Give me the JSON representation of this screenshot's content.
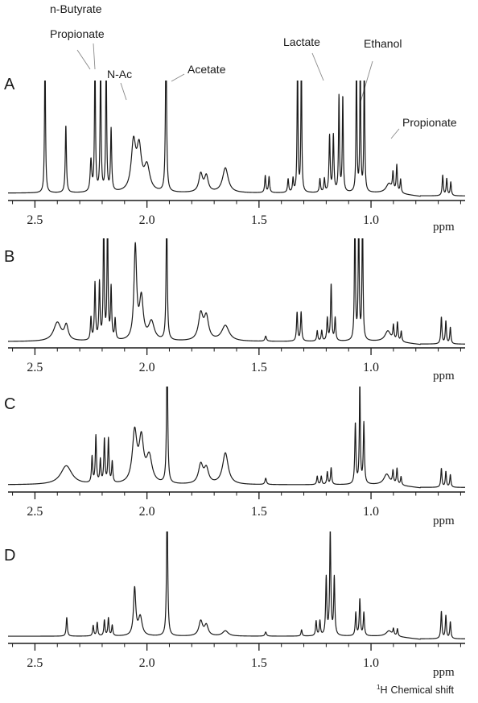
{
  "chart_data": {
    "type": "line",
    "x_unit": "ppm",
    "x_reversed": true,
    "xlim": [
      2.62,
      0.58
    ],
    "x_ticks": [
      2.5,
      2.0,
      1.5,
      1.0
    ],
    "x_tick_labels": [
      "2.5",
      "2.0",
      "1.5",
      "1.0"
    ],
    "xlabel_per_panel": "ppm",
    "xlabel_bottom": "Chemical shift",
    "xlabel_bottom_superscript": "1",
    "xlabel_bottom_nucleus": "H",
    "line_color": "#1a1a1a",
    "peak_labels": [
      {
        "text": "n-Butyrate",
        "ppm": 2.225
      },
      {
        "text": "Propionate",
        "ppm": 2.195
      },
      {
        "text": "N-Ac",
        "ppm": 2.045
      },
      {
        "text": "Acetate",
        "ppm": 1.915
      },
      {
        "text": "Lactate",
        "ppm": 1.33
      },
      {
        "text": "Ethanol",
        "ppm": 1.05
      },
      {
        "text": "Propionate",
        "ppm": 1.05
      }
    ],
    "panels": [
      {
        "label": "A",
        "baseline": 0.03,
        "peaks": [
          {
            "ppm": 2.455,
            "h": 1.3,
            "w": 0.0025
          },
          {
            "ppm": 2.362,
            "h": 0.6,
            "w": 0.003
          },
          {
            "ppm": 2.25,
            "h": 0.28,
            "w": 0.004
          },
          {
            "ppm": 2.232,
            "h": 1.25,
            "w": 0.0025
          },
          {
            "ppm": 2.207,
            "h": 1.25,
            "w": 0.0025
          },
          {
            "ppm": 2.182,
            "h": 1.25,
            "w": 0.0025
          },
          {
            "ppm": 2.16,
            "h": 0.55,
            "w": 0.003
          },
          {
            "ppm": 2.06,
            "h": 0.42,
            "w": 0.012
          },
          {
            "ppm": 2.035,
            "h": 0.36,
            "w": 0.012
          },
          {
            "ppm": 2.0,
            "h": 0.22,
            "w": 0.015
          },
          {
            "ppm": 1.915,
            "h": 1.4,
            "w": 0.003
          },
          {
            "ppm": 1.76,
            "h": 0.16,
            "w": 0.01
          },
          {
            "ppm": 1.735,
            "h": 0.14,
            "w": 0.01
          },
          {
            "ppm": 1.65,
            "h": 0.22,
            "w": 0.015
          },
          {
            "ppm": 1.472,
            "h": 0.15,
            "w": 0.003
          },
          {
            "ppm": 1.455,
            "h": 0.14,
            "w": 0.003
          },
          {
            "ppm": 1.37,
            "h": 0.12,
            "w": 0.003
          },
          {
            "ppm": 1.348,
            "h": 0.12,
            "w": 0.003
          },
          {
            "ppm": 1.328,
            "h": 1.3,
            "w": 0.0022
          },
          {
            "ppm": 1.311,
            "h": 1.3,
            "w": 0.0022
          },
          {
            "ppm": 1.228,
            "h": 0.12,
            "w": 0.003
          },
          {
            "ppm": 1.208,
            "h": 0.12,
            "w": 0.003
          },
          {
            "ppm": 1.185,
            "h": 0.5,
            "w": 0.003
          },
          {
            "ppm": 1.168,
            "h": 0.5,
            "w": 0.003
          },
          {
            "ppm": 1.143,
            "h": 0.85,
            "w": 0.0025
          },
          {
            "ppm": 1.126,
            "h": 0.85,
            "w": 0.0025
          },
          {
            "ppm": 1.065,
            "h": 1.3,
            "w": 0.0022
          },
          {
            "ppm": 1.048,
            "h": 1.3,
            "w": 0.0022
          },
          {
            "ppm": 1.03,
            "h": 1.3,
            "w": 0.0022
          },
          {
            "ppm": 0.92,
            "h": 0.08,
            "w": 0.015
          },
          {
            "ppm": 0.902,
            "h": 0.16,
            "w": 0.003
          },
          {
            "ppm": 0.885,
            "h": 0.24,
            "w": 0.003
          },
          {
            "ppm": 0.868,
            "h": 0.12,
            "w": 0.003
          },
          {
            "ppm": 0.68,
            "h": 0.18,
            "w": 0.003
          },
          {
            "ppm": 0.662,
            "h": 0.15,
            "w": 0.003
          },
          {
            "ppm": 0.644,
            "h": 0.12,
            "w": 0.003
          }
        ]
      },
      {
        "label": "B",
        "baseline": 0.03,
        "peaks": [
          {
            "ppm": 2.4,
            "h": 0.18,
            "w": 0.02
          },
          {
            "ppm": 2.36,
            "h": 0.14,
            "w": 0.01
          },
          {
            "ppm": 2.25,
            "h": 0.22,
            "w": 0.003
          },
          {
            "ppm": 2.232,
            "h": 0.55,
            "w": 0.003
          },
          {
            "ppm": 2.212,
            "h": 0.55,
            "w": 0.003
          },
          {
            "ppm": 2.193,
            "h": 1.3,
            "w": 0.0025
          },
          {
            "ppm": 2.176,
            "h": 1.3,
            "w": 0.0025
          },
          {
            "ppm": 2.16,
            "h": 0.5,
            "w": 0.003
          },
          {
            "ppm": 2.142,
            "h": 0.2,
            "w": 0.003
          },
          {
            "ppm": 2.052,
            "h": 0.9,
            "w": 0.007
          },
          {
            "ppm": 2.025,
            "h": 0.4,
            "w": 0.01
          },
          {
            "ppm": 1.98,
            "h": 0.18,
            "w": 0.015
          },
          {
            "ppm": 1.912,
            "h": 1.3,
            "w": 0.003
          },
          {
            "ppm": 1.76,
            "h": 0.25,
            "w": 0.012
          },
          {
            "ppm": 1.735,
            "h": 0.22,
            "w": 0.012
          },
          {
            "ppm": 1.65,
            "h": 0.15,
            "w": 0.02
          },
          {
            "ppm": 1.47,
            "h": 0.05,
            "w": 0.004
          },
          {
            "ppm": 1.33,
            "h": 0.28,
            "w": 0.003
          },
          {
            "ppm": 1.312,
            "h": 0.28,
            "w": 0.003
          },
          {
            "ppm": 1.24,
            "h": 0.1,
            "w": 0.003
          },
          {
            "ppm": 1.22,
            "h": 0.1,
            "w": 0.003
          },
          {
            "ppm": 1.195,
            "h": 0.22,
            "w": 0.003
          },
          {
            "ppm": 1.178,
            "h": 0.55,
            "w": 0.003
          },
          {
            "ppm": 1.16,
            "h": 0.22,
            "w": 0.003
          },
          {
            "ppm": 1.072,
            "h": 1.3,
            "w": 0.0025
          },
          {
            "ppm": 1.055,
            "h": 1.3,
            "w": 0.0025
          },
          {
            "ppm": 1.038,
            "h": 1.3,
            "w": 0.0025
          },
          {
            "ppm": 0.925,
            "h": 0.1,
            "w": 0.015
          },
          {
            "ppm": 0.9,
            "h": 0.14,
            "w": 0.003
          },
          {
            "ppm": 0.882,
            "h": 0.18,
            "w": 0.003
          },
          {
            "ppm": 0.865,
            "h": 0.1,
            "w": 0.003
          },
          {
            "ppm": 0.686,
            "h": 0.26,
            "w": 0.003
          },
          {
            "ppm": 0.666,
            "h": 0.22,
            "w": 0.003
          },
          {
            "ppm": 0.646,
            "h": 0.16,
            "w": 0.003
          }
        ]
      },
      {
        "label": "C",
        "baseline": 0.03,
        "peaks": [
          {
            "ppm": 2.36,
            "h": 0.18,
            "w": 0.03
          },
          {
            "ppm": 2.245,
            "h": 0.25,
            "w": 0.003
          },
          {
            "ppm": 2.228,
            "h": 0.45,
            "w": 0.003
          },
          {
            "ppm": 2.208,
            "h": 0.22,
            "w": 0.003
          },
          {
            "ppm": 2.19,
            "h": 0.42,
            "w": 0.003
          },
          {
            "ppm": 2.172,
            "h": 0.42,
            "w": 0.003
          },
          {
            "ppm": 2.155,
            "h": 0.2,
            "w": 0.003
          },
          {
            "ppm": 2.055,
            "h": 0.48,
            "w": 0.012
          },
          {
            "ppm": 2.025,
            "h": 0.4,
            "w": 0.012
          },
          {
            "ppm": 1.99,
            "h": 0.25,
            "w": 0.015
          },
          {
            "ppm": 1.91,
            "h": 1.35,
            "w": 0.003
          },
          {
            "ppm": 1.76,
            "h": 0.18,
            "w": 0.012
          },
          {
            "ppm": 1.735,
            "h": 0.14,
            "w": 0.012
          },
          {
            "ppm": 1.65,
            "h": 0.3,
            "w": 0.015
          },
          {
            "ppm": 1.47,
            "h": 0.06,
            "w": 0.004
          },
          {
            "ppm": 1.24,
            "h": 0.08,
            "w": 0.003
          },
          {
            "ppm": 1.222,
            "h": 0.08,
            "w": 0.003
          },
          {
            "ppm": 1.195,
            "h": 0.12,
            "w": 0.003
          },
          {
            "ppm": 1.178,
            "h": 0.16,
            "w": 0.003
          },
          {
            "ppm": 1.07,
            "h": 0.58,
            "w": 0.003
          },
          {
            "ppm": 1.05,
            "h": 1.0,
            "w": 0.0025
          },
          {
            "ppm": 1.032,
            "h": 0.58,
            "w": 0.003
          },
          {
            "ppm": 0.93,
            "h": 0.1,
            "w": 0.015
          },
          {
            "ppm": 0.902,
            "h": 0.12,
            "w": 0.003
          },
          {
            "ppm": 0.884,
            "h": 0.15,
            "w": 0.003
          },
          {
            "ppm": 0.866,
            "h": 0.08,
            "w": 0.003
          },
          {
            "ppm": 0.686,
            "h": 0.18,
            "w": 0.003
          },
          {
            "ppm": 0.666,
            "h": 0.15,
            "w": 0.003
          },
          {
            "ppm": 0.646,
            "h": 0.12,
            "w": 0.003
          }
        ]
      },
      {
        "label": "D",
        "baseline": 0.03,
        "peaks": [
          {
            "ppm": 2.358,
            "h": 0.18,
            "w": 0.003
          },
          {
            "ppm": 2.24,
            "h": 0.1,
            "w": 0.003
          },
          {
            "ppm": 2.222,
            "h": 0.13,
            "w": 0.003
          },
          {
            "ppm": 2.19,
            "h": 0.15,
            "w": 0.003
          },
          {
            "ppm": 2.172,
            "h": 0.17,
            "w": 0.003
          },
          {
            "ppm": 2.155,
            "h": 0.1,
            "w": 0.003
          },
          {
            "ppm": 2.055,
            "h": 0.45,
            "w": 0.006
          },
          {
            "ppm": 2.03,
            "h": 0.18,
            "w": 0.01
          },
          {
            "ppm": 1.91,
            "h": 1.35,
            "w": 0.003
          },
          {
            "ppm": 1.76,
            "h": 0.14,
            "w": 0.01
          },
          {
            "ppm": 1.735,
            "h": 0.1,
            "w": 0.01
          },
          {
            "ppm": 1.65,
            "h": 0.05,
            "w": 0.015
          },
          {
            "ppm": 1.47,
            "h": 0.04,
            "w": 0.004
          },
          {
            "ppm": 1.31,
            "h": 0.06,
            "w": 0.003
          },
          {
            "ppm": 1.245,
            "h": 0.14,
            "w": 0.003
          },
          {
            "ppm": 1.228,
            "h": 0.14,
            "w": 0.003
          },
          {
            "ppm": 1.2,
            "h": 0.55,
            "w": 0.003
          },
          {
            "ppm": 1.182,
            "h": 1.0,
            "w": 0.003
          },
          {
            "ppm": 1.164,
            "h": 0.55,
            "w": 0.003
          },
          {
            "ppm": 1.068,
            "h": 0.22,
            "w": 0.003
          },
          {
            "ppm": 1.05,
            "h": 0.35,
            "w": 0.003
          },
          {
            "ppm": 1.032,
            "h": 0.22,
            "w": 0.003
          },
          {
            "ppm": 0.92,
            "h": 0.05,
            "w": 0.015
          },
          {
            "ppm": 0.9,
            "h": 0.06,
            "w": 0.003
          },
          {
            "ppm": 0.882,
            "h": 0.07,
            "w": 0.003
          },
          {
            "ppm": 0.686,
            "h": 0.26,
            "w": 0.003
          },
          {
            "ppm": 0.666,
            "h": 0.22,
            "w": 0.003
          },
          {
            "ppm": 0.646,
            "h": 0.16,
            "w": 0.003
          }
        ]
      }
    ]
  }
}
